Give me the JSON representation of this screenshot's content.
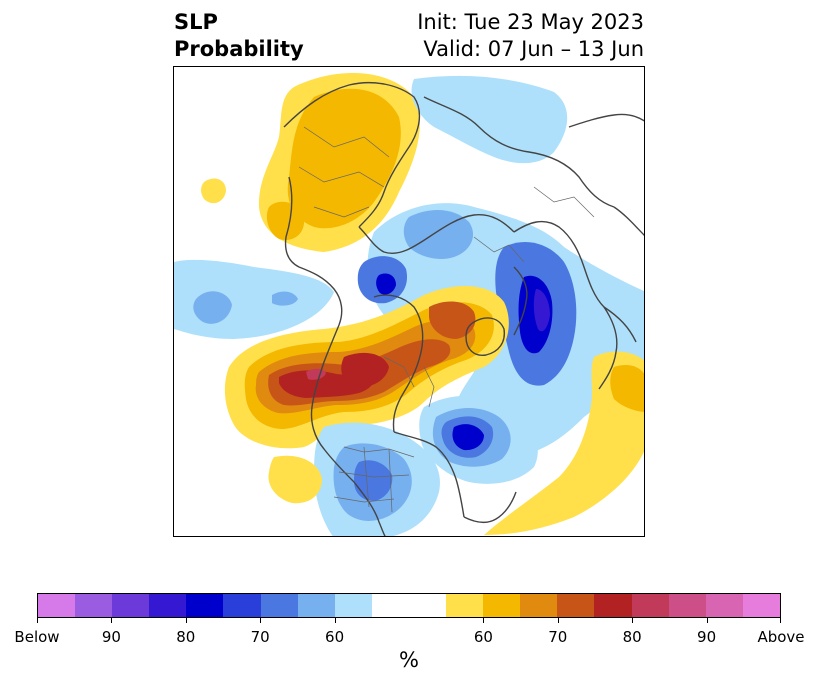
{
  "title": {
    "left_line1": "SLP",
    "left_line2": "Probability",
    "right_line1": "Init: Tue 23 May 2023",
    "right_line2": "Valid: 07 Jun – 13 Jun"
  },
  "colorbar": {
    "colors": [
      "#d57ae8",
      "#9a5ce0",
      "#6b3ad8",
      "#3518d2",
      "#0000cc",
      "#2a3fd9",
      "#4a78e0",
      "#77b0ef",
      "#aee0fb",
      "#ffffff",
      "#ffffff",
      "#ffe04a",
      "#f4b800",
      "#e08a10",
      "#c85518",
      "#b22222",
      "#c23a5a",
      "#cc4f88",
      "#d865b2",
      "#e67cdc"
    ],
    "tick_labels": [
      "Below",
      "90",
      "80",
      "70",
      "60",
      "60",
      "70",
      "80",
      "90",
      "Above"
    ],
    "unit": "%"
  },
  "map": {
    "region": "Northern Hemisphere polar stereographic",
    "legend_colors": {
      "below_light": "#aee0fb",
      "below_mid": "#4a78e0",
      "below_dark": "#0000cc",
      "above_light": "#ffe04a",
      "above_mid": "#e08a10",
      "above_dark": "#b22222",
      "above_darker": "#c23a5a"
    }
  }
}
